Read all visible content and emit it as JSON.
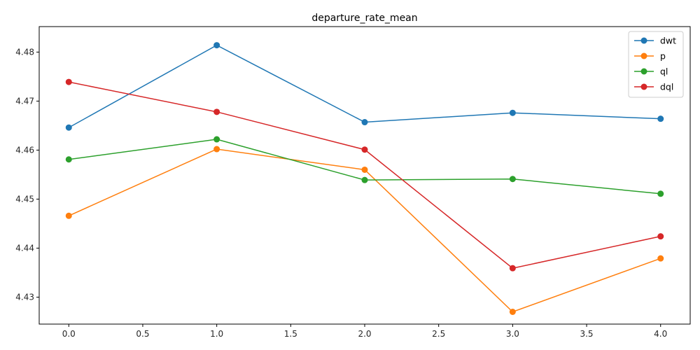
{
  "chart_data": {
    "type": "line",
    "title": "departure_rate_mean",
    "xlabel": "",
    "ylabel": "",
    "x": [
      0,
      1,
      2,
      3,
      4
    ],
    "xlim": [
      -0.2,
      4.2
    ],
    "ylim": [
      4.4245,
      4.4852
    ],
    "xticks": [
      0.0,
      0.5,
      1.0,
      1.5,
      2.0,
      2.5,
      3.0,
      3.5,
      4.0
    ],
    "xtick_labels": [
      "0.0",
      "0.5",
      "1.0",
      "1.5",
      "2.0",
      "2.5",
      "3.0",
      "3.5",
      "4.0"
    ],
    "yticks": [
      4.43,
      4.44,
      4.45,
      4.46,
      4.47,
      4.48
    ],
    "ytick_labels": [
      "4.43",
      "4.44",
      "4.45",
      "4.46",
      "4.47",
      "4.48"
    ],
    "grid": false,
    "legend_position": "top-right",
    "series": [
      {
        "name": "dwt",
        "color": "#1f77b4",
        "values": [
          4.4646,
          4.4814,
          4.4657,
          4.4676,
          4.4664
        ]
      },
      {
        "name": "p",
        "color": "#ff7f0e",
        "values": [
          4.4466,
          4.4602,
          4.456,
          4.427,
          4.4379
        ]
      },
      {
        "name": "ql",
        "color": "#2ca02c",
        "values": [
          4.4581,
          4.4622,
          4.4539,
          4.4541,
          4.4511
        ]
      },
      {
        "name": "dql",
        "color": "#d62728",
        "values": [
          4.4739,
          4.4678,
          4.4601,
          4.4359,
          4.4424
        ]
      }
    ]
  }
}
